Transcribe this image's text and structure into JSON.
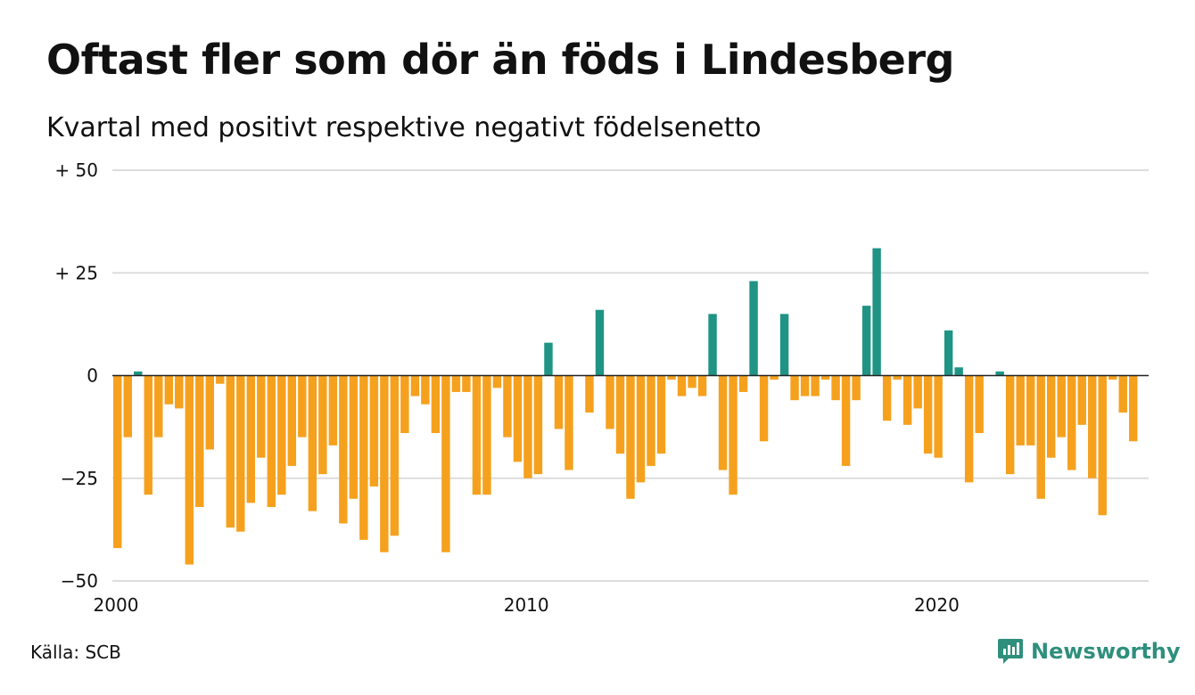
{
  "title": "Oftast fler som dör än föds i Lindesberg",
  "subtitle": "Kvartal med positivt respektive negativt födelsenetto",
  "source": "Källa: SCB",
  "brand": "Newsworthy",
  "colors": {
    "positive": "#1f9484",
    "negative": "#f5a11e",
    "grid": "#dddddd",
    "zero_line": "#222222",
    "brand": "#2e8f7c"
  },
  "chart_data": {
    "type": "bar",
    "x_start_year": 2000,
    "x_range": [
      2000,
      2025.25
    ],
    "quarters_per_year": 4,
    "ylim": [
      -50,
      50
    ],
    "y_ticks": [
      {
        "value": 50,
        "label": "+ 50"
      },
      {
        "value": 25,
        "label": "+ 25"
      },
      {
        "value": 0,
        "label": "0"
      },
      {
        "value": -25,
        "label": "−25"
      },
      {
        "value": -50,
        "label": "−50"
      }
    ],
    "x_ticks": [
      {
        "value": 2000,
        "label": "2000"
      },
      {
        "value": 2010,
        "label": "2010"
      },
      {
        "value": 2020,
        "label": "2020"
      }
    ],
    "values": [
      -42,
      -15,
      1,
      -29,
      -15,
      -7,
      -8,
      -46,
      -32,
      -18,
      -2,
      -37,
      -38,
      -31,
      -20,
      -32,
      -29,
      -22,
      -15,
      -33,
      -24,
      -17,
      -36,
      -30,
      -40,
      -27,
      -43,
      -39,
      -14,
      -5,
      -7,
      -14,
      -43,
      -4,
      -4,
      -29,
      -29,
      -3,
      -15,
      -21,
      -25,
      -24,
      8,
      -13,
      -23,
      0,
      -9,
      16,
      -13,
      -19,
      -30,
      -26,
      -22,
      -19,
      -1,
      -5,
      -3,
      -5,
      15,
      -23,
      -29,
      -4,
      23,
      -16,
      -1,
      15,
      -6,
      -5,
      -5,
      -1,
      -6,
      -22,
      -6,
      17,
      31,
      -11,
      -1,
      -12,
      -8,
      -19,
      -20,
      11,
      2,
      -26,
      -14,
      0,
      1,
      -24,
      -17,
      -17,
      -30,
      -20,
      -15,
      -23,
      -12,
      -25,
      -34,
      -1,
      -9,
      -16
    ]
  }
}
